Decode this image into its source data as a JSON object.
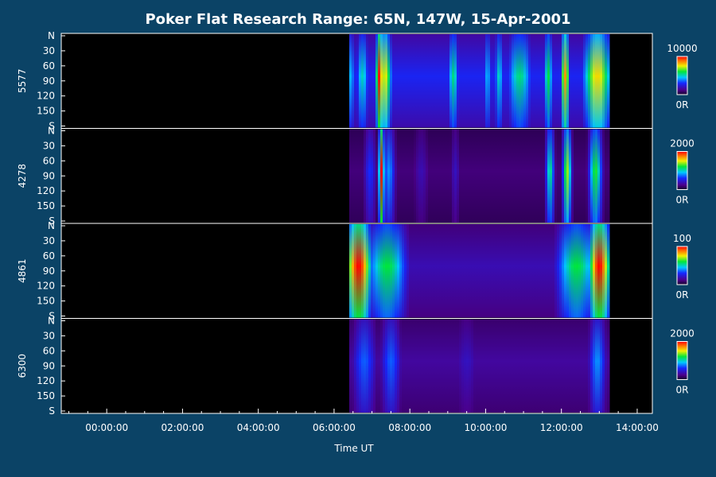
{
  "chart_data": {
    "type": "heatmap",
    "title": "Poker Flat Research Range: 65N, 147W, 15-Apr-2001",
    "xlabel": "Time UT",
    "x_ticks": [
      "00:00:00",
      "02:00:00",
      "04:00:00",
      "06:00:00",
      "08:00:00",
      "10:00:00",
      "12:00:00",
      "14:00:00"
    ],
    "x_range_hours": [
      -1.2,
      14.4
    ],
    "y_ticks": [
      "N",
      "30",
      "60",
      "90",
      "120",
      "150",
      "S"
    ],
    "y_range_deg": [
      0,
      180
    ],
    "data_span_hours": [
      6.4,
      13.25
    ],
    "panels": [
      {
        "name": "5577",
        "colorbar_max": "10000",
        "colorbar_min": "0R",
        "baseline": 0.28,
        "bands": [
          {
            "t": 6.45,
            "w": 0.1,
            "level": 0.45
          },
          {
            "t": 6.75,
            "w": 0.18,
            "level": 0.5
          },
          {
            "t": 7.2,
            "w": 0.1,
            "level": 1.0
          },
          {
            "t": 7.35,
            "w": 0.18,
            "level": 0.75
          },
          {
            "t": 9.15,
            "w": 0.15,
            "level": 0.55
          },
          {
            "t": 10.05,
            "w": 0.1,
            "level": 0.45
          },
          {
            "t": 10.35,
            "w": 0.12,
            "level": 0.5
          },
          {
            "t": 10.9,
            "w": 0.35,
            "level": 0.55
          },
          {
            "t": 11.65,
            "w": 0.12,
            "level": 0.6
          },
          {
            "t": 12.1,
            "w": 0.12,
            "level": 0.85
          },
          {
            "t": 12.95,
            "w": 0.4,
            "level": 0.78
          }
        ]
      },
      {
        "name": "4278",
        "colorbar_max": "2000",
        "colorbar_min": "0R",
        "baseline": 0.1,
        "bands": [
          {
            "t": 6.95,
            "w": 0.18,
            "level": 0.3
          },
          {
            "t": 7.25,
            "w": 0.07,
            "level": 1.0
          },
          {
            "t": 7.45,
            "w": 0.18,
            "level": 0.4
          },
          {
            "t": 8.3,
            "w": 0.25,
            "level": 0.18
          },
          {
            "t": 9.2,
            "w": 0.15,
            "level": 0.2
          },
          {
            "t": 11.7,
            "w": 0.12,
            "level": 0.55
          },
          {
            "t": 12.15,
            "w": 0.12,
            "level": 0.7
          },
          {
            "t": 12.9,
            "w": 0.18,
            "level": 0.62
          }
        ]
      },
      {
        "name": "4861",
        "colorbar_max": "100",
        "colorbar_min": "0R",
        "baseline": 0.18,
        "bands": [
          {
            "t": 6.65,
            "w": 0.35,
            "level": 1.0
          },
          {
            "t": 7.4,
            "w": 0.55,
            "level": 0.6
          },
          {
            "t": 12.4,
            "w": 0.55,
            "level": 0.6
          },
          {
            "t": 13.0,
            "w": 0.3,
            "level": 1.0
          }
        ]
      },
      {
        "name": "6300",
        "colorbar_max": "2000",
        "colorbar_min": "0R",
        "baseline": 0.15,
        "bands": [
          {
            "t": 6.8,
            "w": 0.35,
            "level": 0.35
          },
          {
            "t": 7.5,
            "w": 0.3,
            "level": 0.35
          },
          {
            "t": 9.5,
            "w": 0.4,
            "level": 0.2
          },
          {
            "t": 12.95,
            "w": 0.25,
            "level": 0.4
          }
        ]
      }
    ]
  }
}
